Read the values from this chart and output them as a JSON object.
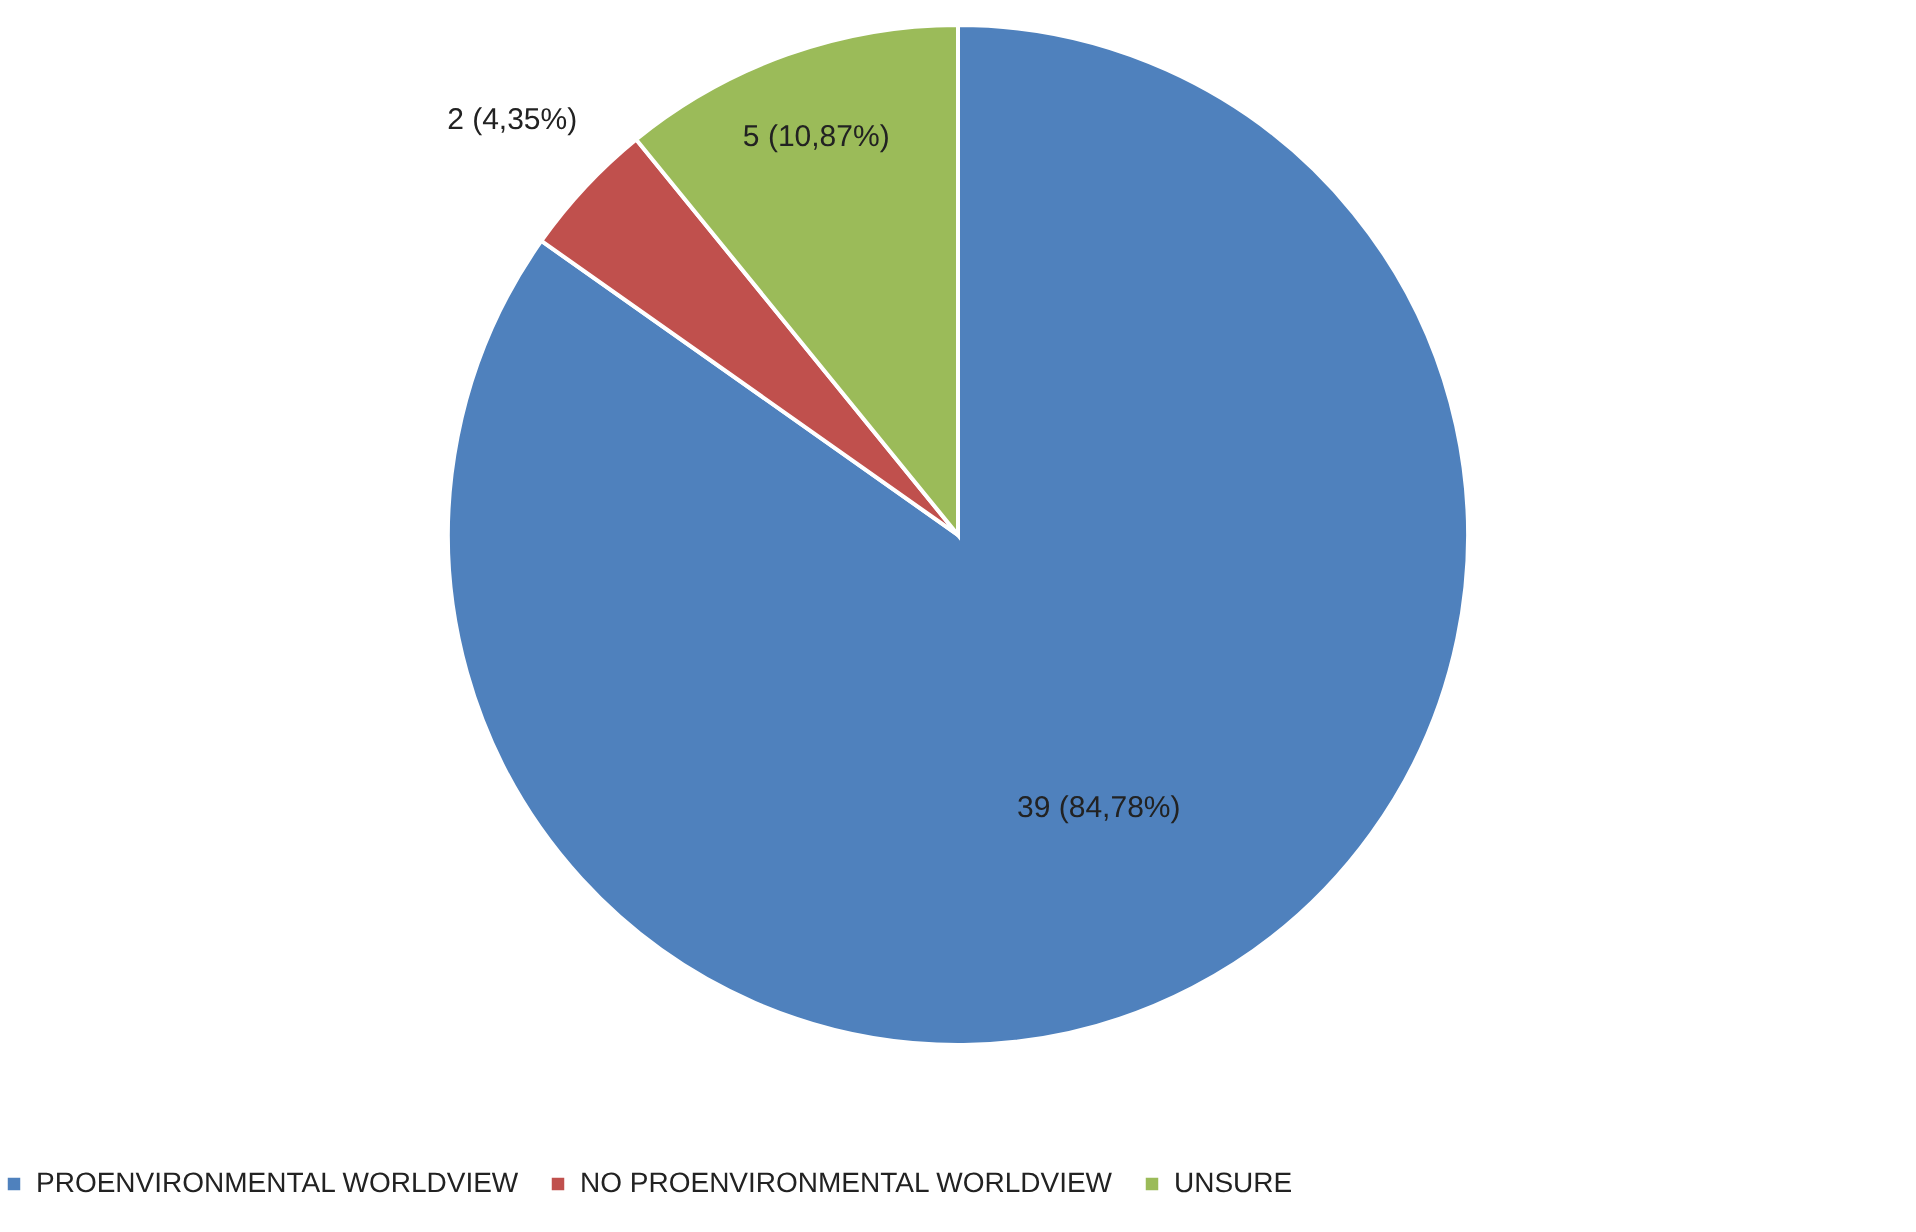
{
  "chart_data": {
    "type": "pie",
    "categories": [
      "PROENVIRONMENTAL WORLDVIEW",
      "NO PROENVIRONMENTAL WORLDVIEW",
      "UNSURE"
    ],
    "values": [
      39,
      2,
      5
    ],
    "colors": [
      "#4f81bd",
      "#c0504d",
      "#9bbb59"
    ],
    "value_labels": [
      "39 (84,78%)",
      "2 (4,35%)",
      "5 (10,87%)"
    ],
    "legend": "bottom"
  }
}
